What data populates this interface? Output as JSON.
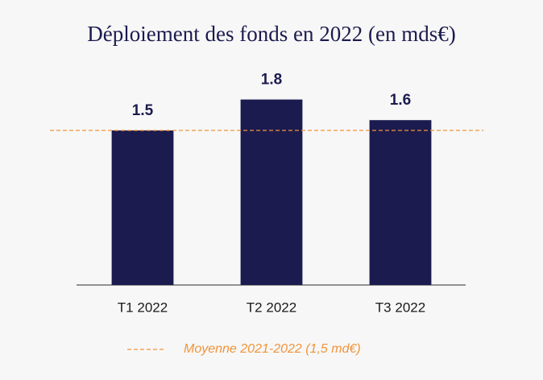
{
  "chart_data": {
    "type": "bar",
    "title": "Déploiement des fonds en 2022 (en mds€)",
    "categories": [
      "T1 2022",
      "T2 2022",
      "T3 2022"
    ],
    "values": [
      1.5,
      1.8,
      1.6
    ],
    "color": "#1b1b4f",
    "ylim": [
      0,
      2
    ],
    "reference_line": {
      "value": 1.5,
      "label": "Moyenne 2021-2022 (1,5 md€)",
      "color": "#f0943a"
    }
  }
}
